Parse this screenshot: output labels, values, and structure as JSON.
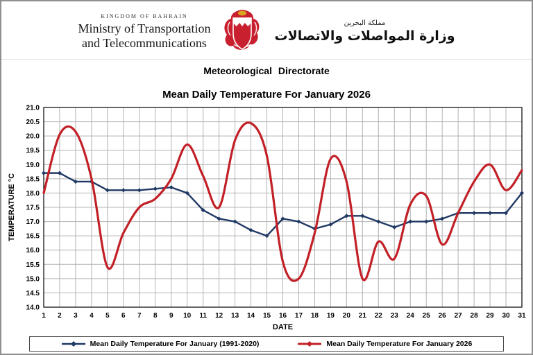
{
  "header": {
    "kingdom_en": "KINGDOM OF BAHRAIN",
    "ministry_line1": "Ministry of Transportation",
    "ministry_line2": "and Telecommunications",
    "kingdom_ar": "مملكة البحرين",
    "ministry_ar": "وزارة المواصلات والاتصالات",
    "directorate": "Meteorological Directorate"
  },
  "chart_data": {
    "type": "line",
    "title": "Mean Daily Temperature For January 2026",
    "xlabel": "DATE",
    "ylabel": "TEMPERATURE °C",
    "ylim": [
      14.0,
      21.0
    ],
    "ytick_step": 0.5,
    "ytick_labels": [
      "14.0",
      "14.5",
      "15.0",
      "15.5",
      "16.0",
      "16.5",
      "17.0",
      "17.5",
      "18.0",
      "18.5",
      "19.0",
      "19.5",
      "20.0",
      "20.5",
      "21.0"
    ],
    "grid": true,
    "legend_position": "bottom",
    "x": [
      1,
      2,
      3,
      4,
      5,
      6,
      7,
      8,
      9,
      10,
      11,
      12,
      13,
      14,
      15,
      16,
      17,
      18,
      19,
      20,
      21,
      22,
      23,
      24,
      25,
      26,
      27,
      28,
      29,
      30,
      31
    ],
    "series": [
      {
        "name": "Mean Daily Temperature For January (1991-2020)",
        "color": "#1f3864",
        "smooth": false,
        "marker": "diamond",
        "width": 2.4,
        "values": [
          18.7,
          18.7,
          18.4,
          18.4,
          18.1,
          18.1,
          18.1,
          18.15,
          18.2,
          18.0,
          17.4,
          17.1,
          17.0,
          16.7,
          16.5,
          17.1,
          17.0,
          16.75,
          16.9,
          17.2,
          17.2,
          17.0,
          16.8,
          17.0,
          17.0,
          17.1,
          17.3,
          17.3,
          17.3,
          17.3,
          18.0
        ]
      },
      {
        "name": "Mean Daily Temperature For January 2026",
        "color": "#c22026",
        "smooth": true,
        "marker": "none",
        "width": 3.2,
        "values": [
          18.0,
          20.05,
          20.15,
          18.5,
          15.4,
          16.6,
          17.5,
          17.8,
          18.5,
          19.7,
          18.6,
          17.5,
          19.85,
          20.45,
          19.3,
          15.6,
          15.0,
          16.6,
          19.2,
          18.4,
          15.0,
          16.3,
          15.7,
          17.6,
          17.9,
          16.2,
          17.3,
          18.4,
          19.0,
          18.1,
          18.8
        ]
      }
    ]
  }
}
